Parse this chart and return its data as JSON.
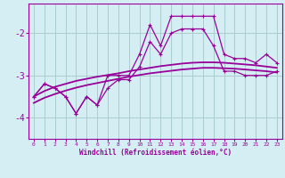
{
  "xlabel": "Windchill (Refroidissement éolien,°C)",
  "x": [
    0,
    1,
    2,
    3,
    4,
    5,
    6,
    7,
    8,
    9,
    10,
    11,
    12,
    13,
    14,
    15,
    16,
    17,
    18,
    19,
    20,
    21,
    22,
    23
  ],
  "line_max": [
    -3.5,
    -3.2,
    -3.3,
    -3.5,
    -3.9,
    -3.5,
    -3.7,
    -3.0,
    -3.0,
    -3.0,
    -2.5,
    -1.8,
    -2.3,
    -1.6,
    -1.6,
    -1.6,
    -1.6,
    -1.6,
    -2.5,
    -2.6,
    -2.6,
    -2.7,
    -2.5,
    -2.7
  ],
  "line_min": [
    -3.5,
    -3.2,
    -3.3,
    -3.5,
    -3.9,
    -3.5,
    -3.7,
    -3.3,
    -3.1,
    -3.1,
    -2.8,
    -2.2,
    -2.5,
    -2.0,
    -1.9,
    -1.9,
    -1.9,
    -2.3,
    -2.9,
    -2.9,
    -3.0,
    -3.0,
    -3.0,
    -2.9
  ],
  "line_smooth1": [
    -3.5,
    -3.37,
    -3.27,
    -3.2,
    -3.13,
    -3.08,
    -3.03,
    -2.99,
    -2.95,
    -2.9,
    -2.86,
    -2.82,
    -2.78,
    -2.75,
    -2.72,
    -2.7,
    -2.69,
    -2.69,
    -2.7,
    -2.72,
    -2.74,
    -2.76,
    -2.79,
    -2.82
  ],
  "line_smooth2": [
    -3.65,
    -3.53,
    -3.44,
    -3.36,
    -3.29,
    -3.23,
    -3.18,
    -3.13,
    -3.08,
    -3.03,
    -2.99,
    -2.95,
    -2.92,
    -2.89,
    -2.86,
    -2.84,
    -2.82,
    -2.82,
    -2.83,
    -2.84,
    -2.86,
    -2.88,
    -2.9,
    -2.93
  ],
  "color": "#990099",
  "bg_color": "#d4eef4",
  "grid_color": "#aacccc",
  "ylim": [
    -4.5,
    -1.3
  ],
  "yticks": [
    -4,
    -3,
    -2
  ],
  "xlim": [
    -0.5,
    23.5
  ]
}
